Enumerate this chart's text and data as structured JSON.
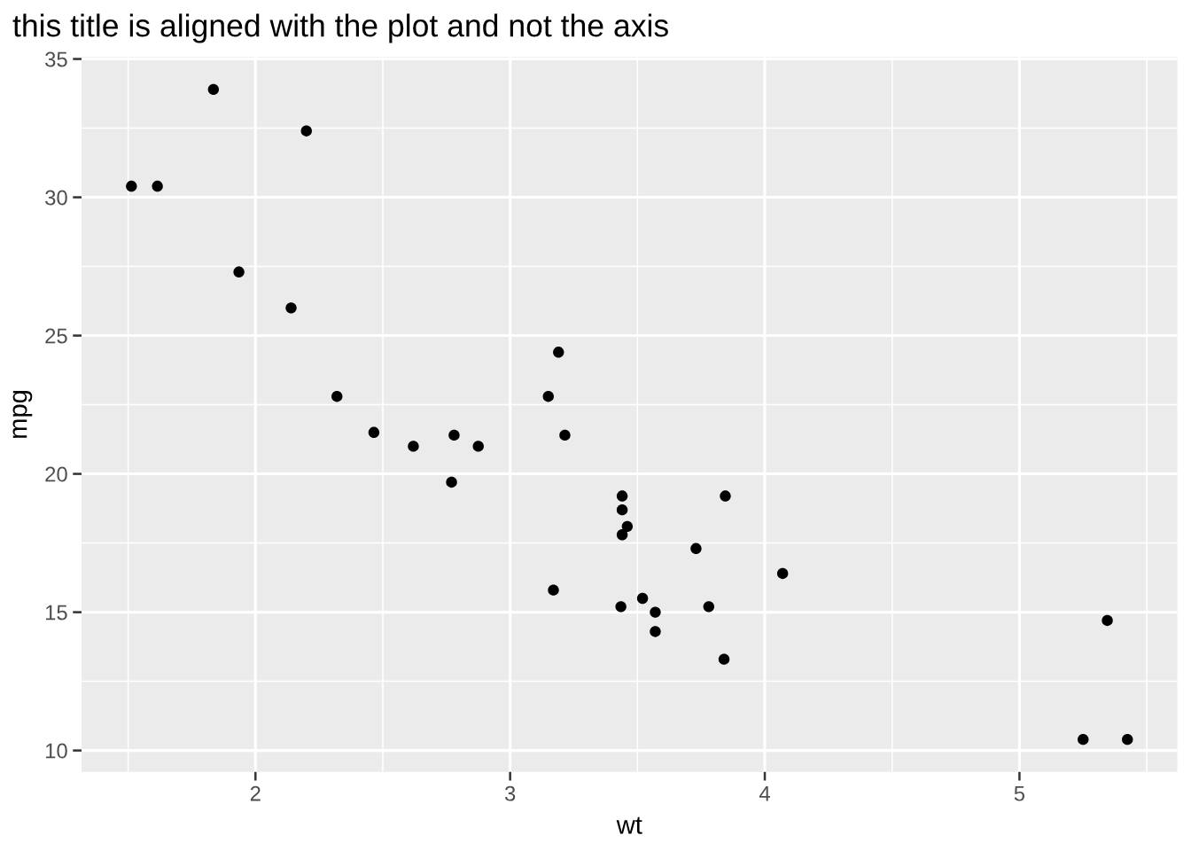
{
  "chart_data": {
    "type": "scatter",
    "title": "this title is aligned with the plot and not the axis",
    "xlabel": "wt",
    "ylabel": "mpg",
    "x": [
      2.62,
      2.875,
      2.32,
      3.215,
      3.44,
      3.46,
      3.57,
      3.19,
      3.15,
      3.44,
      3.44,
      4.07,
      3.73,
      3.78,
      5.25,
      5.424,
      5.345,
      2.2,
      1.615,
      1.835,
      2.465,
      3.52,
      3.435,
      3.84,
      3.845,
      1.935,
      2.14,
      1.513,
      3.17,
      2.77,
      3.57,
      2.78
    ],
    "values": [
      21.0,
      21.0,
      22.8,
      21.4,
      18.7,
      18.1,
      14.3,
      24.4,
      22.8,
      19.2,
      17.8,
      16.4,
      17.3,
      15.2,
      10.4,
      10.4,
      14.7,
      32.4,
      30.4,
      33.9,
      21.5,
      15.5,
      15.2,
      13.3,
      19.2,
      27.3,
      26.0,
      30.4,
      15.8,
      19.7,
      15.0,
      21.4
    ],
    "color": "#000000",
    "marker": "circle",
    "xlim": [
      1.317,
      5.62
    ],
    "ylim": [
      9.225,
      35.075
    ],
    "xticks": [
      2,
      3,
      4,
      5
    ],
    "yticks": [
      10,
      15,
      20,
      25,
      30,
      35
    ],
    "grid": true
  }
}
